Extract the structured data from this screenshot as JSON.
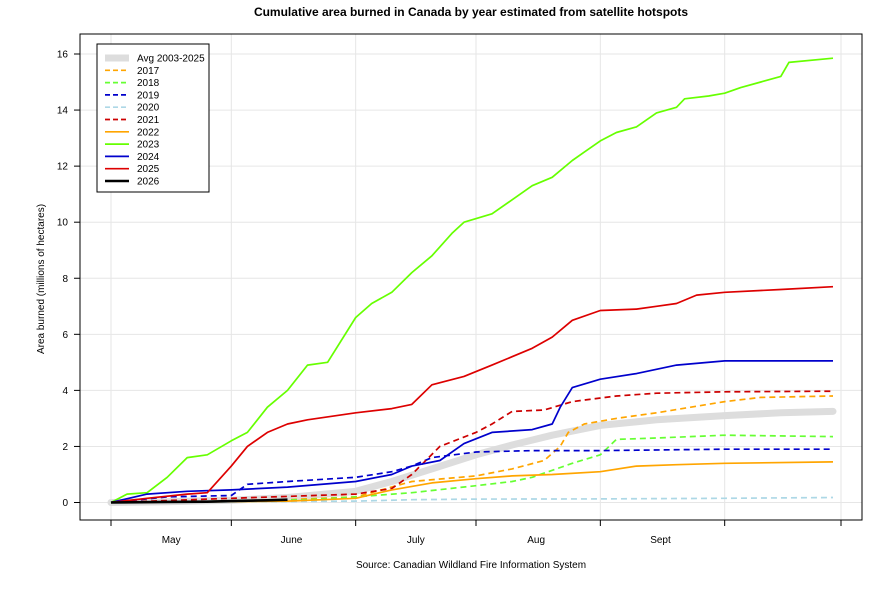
{
  "chart_data": {
    "type": "line",
    "title": "Cumulative area burned in Canada by year estimated from satellite hotspots",
    "ylabel": "Area burned (millions of hectares)",
    "xlabel": "",
    "source": "Source: Canadian Wildland Fire Information System",
    "ylim": [
      0,
      16
    ],
    "y_ticks": [
      0,
      2,
      4,
      6,
      8,
      10,
      12,
      14,
      16
    ],
    "x_range": [
      "2026-04-01",
      "2026-09-30"
    ],
    "x_tick_dates": [
      "2026-04-01",
      "2026-05-01",
      "2026-06-01",
      "2026-07-01",
      "2026-08-01",
      "2026-09-01",
      "2026-09-30"
    ],
    "x_month_labels": [
      {
        "label": "May",
        "date": "2026-04-16"
      },
      {
        "label": "June",
        "date": "2026-05-16"
      },
      {
        "label": "July",
        "date": "2026-06-16"
      },
      {
        "label": "Aug",
        "date": "2026-07-16"
      },
      {
        "label": "Sept",
        "date": "2026-08-16"
      }
    ],
    "grid": true,
    "legend_position": "top-left",
    "series": [
      {
        "name": "Avg 2003-2025",
        "color": "#dddddd",
        "style": "solid",
        "points": [
          [
            "2026-04-01",
            0
          ],
          [
            "2026-04-15",
            0.03
          ],
          [
            "2026-05-01",
            0.08
          ],
          [
            "2026-05-15",
            0.18
          ],
          [
            "2026-06-01",
            0.4
          ],
          [
            "2026-06-10",
            0.75
          ],
          [
            "2026-06-20",
            1.2
          ],
          [
            "2026-07-01",
            1.7
          ],
          [
            "2026-07-10",
            2.05
          ],
          [
            "2026-07-20",
            2.4
          ],
          [
            "2026-08-01",
            2.75
          ],
          [
            "2026-08-15",
            2.95
          ],
          [
            "2026-09-01",
            3.1
          ],
          [
            "2026-09-15",
            3.2
          ],
          [
            "2026-09-28",
            3.25
          ]
        ]
      },
      {
        "name": "2017",
        "color": "#ffa500",
        "style": "dashed",
        "points": [
          [
            "2026-04-01",
            0
          ],
          [
            "2026-05-01",
            0.05
          ],
          [
            "2026-05-15",
            0.1
          ],
          [
            "2026-06-01",
            0.2
          ],
          [
            "2026-06-15",
            0.75
          ],
          [
            "2026-07-01",
            0.95
          ],
          [
            "2026-07-10",
            1.2
          ],
          [
            "2026-07-18",
            1.5
          ],
          [
            "2026-07-22",
            2.0
          ],
          [
            "2026-07-24",
            2.5
          ],
          [
            "2026-07-28",
            2.8
          ],
          [
            "2026-08-05",
            3.0
          ],
          [
            "2026-08-15",
            3.2
          ],
          [
            "2026-09-01",
            3.6
          ],
          [
            "2026-09-10",
            3.75
          ],
          [
            "2026-09-28",
            3.8
          ]
        ]
      },
      {
        "name": "2018",
        "color": "#66ff33",
        "style": "dashed",
        "points": [
          [
            "2026-04-01",
            0
          ],
          [
            "2026-05-01",
            0.05
          ],
          [
            "2026-05-20",
            0.1
          ],
          [
            "2026-06-01",
            0.2
          ],
          [
            "2026-06-15",
            0.35
          ],
          [
            "2026-07-01",
            0.6
          ],
          [
            "2026-07-10",
            0.75
          ],
          [
            "2026-07-15",
            0.9
          ],
          [
            "2026-07-25",
            1.4
          ],
          [
            "2026-08-01",
            1.7
          ],
          [
            "2026-08-05",
            2.25
          ],
          [
            "2026-08-15",
            2.3
          ],
          [
            "2026-09-01",
            2.4
          ],
          [
            "2026-09-28",
            2.35
          ]
        ]
      },
      {
        "name": "2019",
        "color": "#0000cc",
        "style": "dashed",
        "points": [
          [
            "2026-04-01",
            0
          ],
          [
            "2026-04-15",
            0.2
          ],
          [
            "2026-05-01",
            0.25
          ],
          [
            "2026-05-05",
            0.65
          ],
          [
            "2026-05-15",
            0.75
          ],
          [
            "2026-06-01",
            0.9
          ],
          [
            "2026-06-10",
            1.1
          ],
          [
            "2026-06-15",
            1.3
          ],
          [
            "2026-06-20",
            1.6
          ],
          [
            "2026-07-01",
            1.8
          ],
          [
            "2026-07-15",
            1.85
          ],
          [
            "2026-08-01",
            1.85
          ],
          [
            "2026-09-01",
            1.9
          ],
          [
            "2026-09-28",
            1.9
          ]
        ]
      },
      {
        "name": "2020",
        "color": "#add8e6",
        "style": "dashed",
        "points": [
          [
            "2026-04-01",
            0
          ],
          [
            "2026-05-01",
            0.02
          ],
          [
            "2026-06-01",
            0.05
          ],
          [
            "2026-06-15",
            0.1
          ],
          [
            "2026-07-01",
            0.12
          ],
          [
            "2026-08-01",
            0.13
          ],
          [
            "2026-09-01",
            0.15
          ],
          [
            "2026-09-28",
            0.18
          ]
        ]
      },
      {
        "name": "2021",
        "color": "#cc0000",
        "style": "dashed",
        "points": [
          [
            "2026-04-01",
            0
          ],
          [
            "2026-05-01",
            0.15
          ],
          [
            "2026-06-01",
            0.3
          ],
          [
            "2026-06-10",
            0.5
          ],
          [
            "2026-06-15",
            1.0
          ],
          [
            "2026-06-22",
            2.0
          ],
          [
            "2026-07-01",
            2.5
          ],
          [
            "2026-07-05",
            2.8
          ],
          [
            "2026-07-10",
            3.25
          ],
          [
            "2026-07-18",
            3.3
          ],
          [
            "2026-07-25",
            3.6
          ],
          [
            "2026-08-05",
            3.8
          ],
          [
            "2026-08-15",
            3.9
          ],
          [
            "2026-09-01",
            3.95
          ],
          [
            "2026-09-28",
            3.97
          ]
        ]
      },
      {
        "name": "2022",
        "color": "#ffa500",
        "style": "solid",
        "points": [
          [
            "2026-04-01",
            0
          ],
          [
            "2026-05-01",
            0.03
          ],
          [
            "2026-05-15",
            0.05
          ],
          [
            "2026-06-01",
            0.15
          ],
          [
            "2026-06-10",
            0.45
          ],
          [
            "2026-06-20",
            0.7
          ],
          [
            "2026-07-01",
            0.85
          ],
          [
            "2026-07-10",
            0.95
          ],
          [
            "2026-07-20",
            1.0
          ],
          [
            "2026-08-01",
            1.1
          ],
          [
            "2026-08-10",
            1.3
          ],
          [
            "2026-08-20",
            1.35
          ],
          [
            "2026-09-01",
            1.4
          ],
          [
            "2026-09-28",
            1.45
          ]
        ]
      },
      {
        "name": "2023",
        "color": "#66ff00",
        "style": "solid",
        "points": [
          [
            "2026-04-01",
            0
          ],
          [
            "2026-04-05",
            0.3
          ],
          [
            "2026-04-10",
            0.35
          ],
          [
            "2026-04-15",
            0.9
          ],
          [
            "2026-04-20",
            1.6
          ],
          [
            "2026-04-25",
            1.7
          ],
          [
            "2026-05-01",
            2.2
          ],
          [
            "2026-05-05",
            2.5
          ],
          [
            "2026-05-10",
            3.4
          ],
          [
            "2026-05-15",
            4.0
          ],
          [
            "2026-05-20",
            4.9
          ],
          [
            "2026-05-25",
            5.0
          ],
          [
            "2026-06-01",
            6.6
          ],
          [
            "2026-06-05",
            7.1
          ],
          [
            "2026-06-10",
            7.5
          ],
          [
            "2026-06-15",
            8.2
          ],
          [
            "2026-06-20",
            8.8
          ],
          [
            "2026-06-25",
            9.6
          ],
          [
            "2026-06-28",
            10.0
          ],
          [
            "2026-07-05",
            10.3
          ],
          [
            "2026-07-10",
            10.8
          ],
          [
            "2026-07-15",
            11.3
          ],
          [
            "2026-07-20",
            11.6
          ],
          [
            "2026-07-25",
            12.2
          ],
          [
            "2026-07-28",
            12.5
          ],
          [
            "2026-08-01",
            12.9
          ],
          [
            "2026-08-05",
            13.2
          ],
          [
            "2026-08-10",
            13.4
          ],
          [
            "2026-08-15",
            13.9
          ],
          [
            "2026-08-20",
            14.1
          ],
          [
            "2026-08-22",
            14.4
          ],
          [
            "2026-08-28",
            14.5
          ],
          [
            "2026-09-01",
            14.6
          ],
          [
            "2026-09-05",
            14.8
          ],
          [
            "2026-09-10",
            15.0
          ],
          [
            "2026-09-15",
            15.2
          ],
          [
            "2026-09-17",
            15.7
          ],
          [
            "2026-09-28",
            15.85
          ]
        ]
      },
      {
        "name": "2024",
        "color": "#0000cc",
        "style": "solid",
        "points": [
          [
            "2026-04-01",
            0
          ],
          [
            "2026-04-10",
            0.3
          ],
          [
            "2026-04-20",
            0.4
          ],
          [
            "2026-05-01",
            0.45
          ],
          [
            "2026-05-15",
            0.55
          ],
          [
            "2026-06-01",
            0.75
          ],
          [
            "2026-06-10",
            1.0
          ],
          [
            "2026-06-15",
            1.3
          ],
          [
            "2026-06-22",
            1.5
          ],
          [
            "2026-06-28",
            2.1
          ],
          [
            "2026-07-05",
            2.5
          ],
          [
            "2026-07-15",
            2.6
          ],
          [
            "2026-07-20",
            2.8
          ],
          [
            "2026-07-22",
            3.4
          ],
          [
            "2026-07-25",
            4.1
          ],
          [
            "2026-08-01",
            4.4
          ],
          [
            "2026-08-10",
            4.6
          ],
          [
            "2026-08-20",
            4.9
          ],
          [
            "2026-09-01",
            5.05
          ],
          [
            "2026-09-28",
            5.05
          ]
        ]
      },
      {
        "name": "2025",
        "color": "#dd0000",
        "style": "solid",
        "points": [
          [
            "2026-04-01",
            0
          ],
          [
            "2026-04-10",
            0.15
          ],
          [
            "2026-04-20",
            0.3
          ],
          [
            "2026-04-25",
            0.35
          ],
          [
            "2026-05-01",
            1.3
          ],
          [
            "2026-05-05",
            2.0
          ],
          [
            "2026-05-10",
            2.5
          ],
          [
            "2026-05-15",
            2.8
          ],
          [
            "2026-05-20",
            2.95
          ],
          [
            "2026-06-01",
            3.2
          ],
          [
            "2026-06-10",
            3.35
          ],
          [
            "2026-06-15",
            3.5
          ],
          [
            "2026-06-20",
            4.2
          ],
          [
            "2026-06-28",
            4.5
          ],
          [
            "2026-07-05",
            4.9
          ],
          [
            "2026-07-10",
            5.2
          ],
          [
            "2026-07-15",
            5.5
          ],
          [
            "2026-07-20",
            5.9
          ],
          [
            "2026-07-25",
            6.5
          ],
          [
            "2026-08-01",
            6.85
          ],
          [
            "2026-08-10",
            6.9
          ],
          [
            "2026-08-15",
            7.0
          ],
          [
            "2026-08-20",
            7.1
          ],
          [
            "2026-08-25",
            7.4
          ],
          [
            "2026-09-01",
            7.5
          ],
          [
            "2026-09-15",
            7.6
          ],
          [
            "2026-09-28",
            7.7
          ]
        ]
      },
      {
        "name": "2026",
        "color": "#000000",
        "style": "solid",
        "points": [
          [
            "2026-04-01",
            0
          ],
          [
            "2026-04-15",
            0.02
          ],
          [
            "2026-04-25",
            0.03
          ],
          [
            "2026-05-01",
            0.05
          ],
          [
            "2026-05-10",
            0.08
          ],
          [
            "2026-05-15",
            0.1
          ]
        ]
      }
    ]
  }
}
